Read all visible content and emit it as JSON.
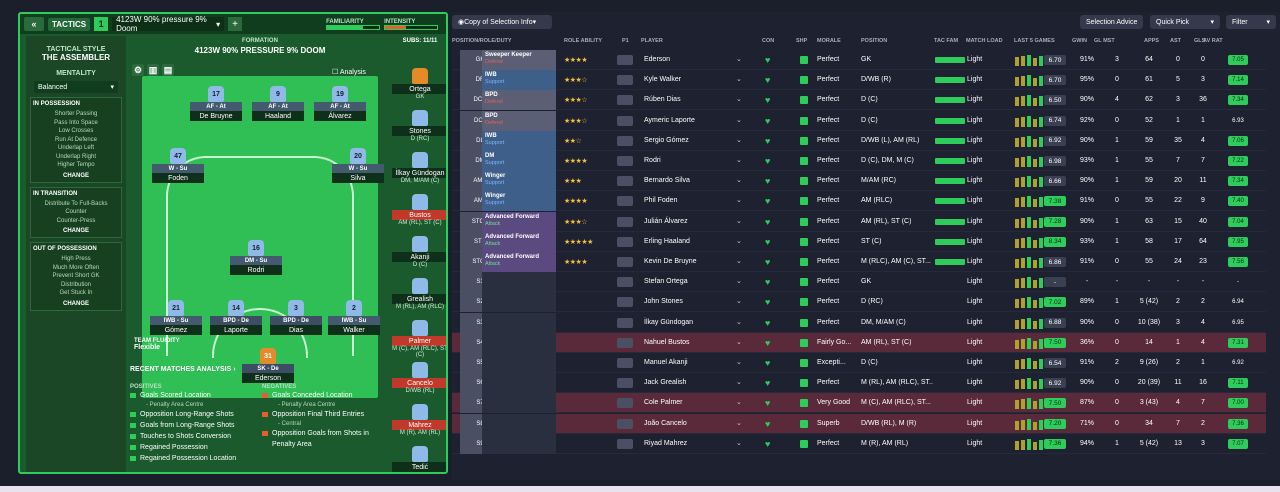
{
  "tactics_bar": {
    "tactics_label": "TACTICS",
    "tactic_num": "1",
    "tactic_name": "4123W 90% pressure 9% Doom",
    "familiarity": "FAMILIARITY",
    "intensity": "INTENSITY"
  },
  "sidebar": {
    "style_label": "TACTICAL STYLE",
    "style_name": "THE ASSEMBLER",
    "mentality_label": "MENTALITY",
    "mentality": "Balanced",
    "in_possession": {
      "title": "IN POSSESSION",
      "items": [
        "Shorter Passing",
        "Pass Into Space",
        "Low Crosses",
        "Run At Defence",
        "Underlap Left",
        "Underlap Right",
        "Higher Tempo"
      ],
      "change": "CHANGE"
    },
    "in_transition": {
      "title": "IN TRANSITION",
      "items": [
        "Distribute To Full-Backs",
        "Counter",
        "Counter-Press"
      ],
      "change": "CHANGE"
    },
    "out_of_possession": {
      "title": "OUT OF POSSESSION",
      "items": [
        "High Press",
        "Much More Often",
        "Prevent Short GK",
        "Distribution",
        "Get Stuck In"
      ],
      "change": "CHANGE"
    }
  },
  "pitch": {
    "formation_label": "FORMATION",
    "formation_name": "4123W 90% PRESSURE 9% DOOM",
    "analysis": "Analysis",
    "subs_label": "SUBS:",
    "subs_count": "11/11",
    "players": [
      {
        "num": "17",
        "role": "AF - At",
        "name": "De Bruyne"
      },
      {
        "num": "9",
        "role": "AF - At",
        "name": "Haaland"
      },
      {
        "num": "19",
        "role": "AF - At",
        "name": "Álvarez"
      },
      {
        "num": "47",
        "role": "W - Su",
        "name": "Foden"
      },
      {
        "num": "20",
        "role": "W - Su",
        "name": "Silva"
      },
      {
        "num": "16",
        "role": "DM - Su",
        "name": "Rodri"
      },
      {
        "num": "21",
        "role": "IWB - Su",
        "name": "Gómez"
      },
      {
        "num": "14",
        "role": "BPD - De",
        "name": "Laporte"
      },
      {
        "num": "3",
        "role": "BPD - De",
        "name": "Dias"
      },
      {
        "num": "2",
        "role": "IWB - Su",
        "name": "Walker"
      },
      {
        "num": "31",
        "role": "SK - De",
        "name": "Ederson"
      }
    ],
    "fluidity_label": "TEAM FLUIDITY",
    "fluidity": "Flexible"
  },
  "subs": [
    {
      "name": "Ortega",
      "pos": "GK"
    },
    {
      "name": "Stones",
      "pos": "D (RC)"
    },
    {
      "name": "İlkay Gündogan",
      "pos": "DM, M/AM (C)"
    },
    {
      "name": "Bustos",
      "pos": "AM (RL), ST (C)"
    },
    {
      "name": "Akanji",
      "pos": "D (C)"
    },
    {
      "name": "Grealish",
      "pos": "M (RL), AM (RLC)"
    },
    {
      "name": "Palmer",
      "pos": "M (C), AM (RLC), ST (C)"
    },
    {
      "name": "Cancelo",
      "pos": "D/WB (RL)"
    },
    {
      "name": "Mahrez",
      "pos": "M (R), AM (RL)"
    },
    {
      "name": "Tedić",
      "pos": ""
    }
  ],
  "recent": {
    "title": "RECENT MATCHES ANALYSIS",
    "positives_label": "POSITIVES",
    "negatives_label": "NEGATIVES",
    "positives": [
      "Goals Scored Location",
      "Opposition Long-Range Shots",
      "Goals from Long-Range Shots",
      "Touches to Shots Conversion",
      "Regained Possession",
      "Regained Possession Location"
    ],
    "pos_sub": "- Penalty Area Centre",
    "negatives": [
      "Goals Conceded Location",
      "Opposition Final Third Entries",
      "Opposition Goals from Shots in Penalty Area"
    ],
    "neg_sub1": "- Penalty Area Centre",
    "neg_sub2": "- Central"
  },
  "rp_bar": {
    "copy": "Copy of Selection Info",
    "advice": "Selection Advice",
    "quick": "Quick Pick",
    "filter": "Filter"
  },
  "headers": [
    "POSITION/ROLE/DUTY",
    "ROLE ABILITY",
    "P1",
    "PLAYER",
    "CON",
    "SHP",
    "MORALE",
    "POSITION",
    "TAC FAM",
    "MATCH LOAD",
    "LAST 5 GAMES",
    "GWIN",
    "GL MST",
    "APPS",
    "AST",
    "GLS",
    "AV RAT"
  ],
  "rows": [
    {
      "pos": "GK",
      "role": "Sweeper Keeper",
      "duty": "Defend",
      "dt": "def",
      "stars": "★★★★",
      "name": "Ederson",
      "morale": "Perfect",
      "position": "GK",
      "ml": "Light",
      "rt": "6.70",
      "g": "91%",
      "m": "3",
      "a": "64",
      "s": "0",
      "l": "0",
      "av": "7.05"
    },
    {
      "pos": "DR",
      "role": "IWB",
      "duty": "Support",
      "dt": "sup",
      "stars": "★★★☆",
      "name": "Kyle Walker",
      "morale": "Perfect",
      "position": "D/WB (R)",
      "ml": "Light",
      "rt": "6.70",
      "g": "95%",
      "m": "0",
      "a": "61",
      "s": "5",
      "l": "3",
      "av": "7.14"
    },
    {
      "pos": "DCR",
      "role": "BPD",
      "duty": "Defend",
      "dt": "def",
      "stars": "★★★☆",
      "name": "Rúben Dias",
      "morale": "Perfect",
      "position": "D (C)",
      "ml": "Light",
      "rt": "6.50",
      "g": "90%",
      "m": "4",
      "a": "62",
      "s": "3",
      "l": "36",
      "av": "7.34"
    },
    {
      "pos": "DCL",
      "role": "BPD",
      "duty": "Defend",
      "dt": "def",
      "stars": "★★★☆",
      "name": "Aymeric Laporte",
      "morale": "Perfect",
      "position": "D (C)",
      "ml": "Light",
      "rt": "6.74",
      "g": "92%",
      "m": "0",
      "a": "52",
      "s": "1",
      "l": "1",
      "av": "6.93"
    },
    {
      "pos": "DL",
      "role": "IWB",
      "duty": "Support",
      "dt": "sup",
      "stars": "★★☆",
      "name": "Sergio Gómez",
      "morale": "Perfect",
      "position": "D/WB (L), AM (RL)",
      "ml": "Light",
      "rt": "6.92",
      "g": "90%",
      "m": "1",
      "a": "59",
      "s": "35",
      "l": "4",
      "av": "7.06"
    },
    {
      "pos": "DM",
      "role": "DM",
      "duty": "Support",
      "dt": "sup",
      "stars": "★★★★",
      "name": "Rodri",
      "morale": "Perfect",
      "position": "D (C), DM, M (C)",
      "ml": "Light",
      "rt": "6.98",
      "g": "93%",
      "m": "1",
      "a": "55",
      "s": "7",
      "l": "7",
      "av": "7.22"
    },
    {
      "pos": "AMR",
      "role": "Winger",
      "duty": "Support",
      "dt": "sup",
      "stars": "★★★",
      "name": "Bernardo Silva",
      "morale": "Perfect",
      "position": "M/AM (RC)",
      "ml": "Light",
      "rt": "6.66",
      "g": "90%",
      "m": "1",
      "a": "59",
      "s": "20",
      "l": "11",
      "av": "7.34"
    },
    {
      "pos": "AML",
      "role": "Winger",
      "duty": "Support",
      "dt": "sup",
      "stars": "★★★★",
      "name": "Phil Foden",
      "morale": "Perfect",
      "position": "AM (RLC)",
      "ml": "Light",
      "rt": "7.38",
      "g": "91%",
      "m": "0",
      "a": "55",
      "s": "22",
      "l": "9",
      "av": "7.40"
    },
    {
      "pos": "STCR",
      "role": "Advanced Forward",
      "duty": "Attack",
      "dt": "att",
      "stars": "★★★☆",
      "name": "Julián Álvarez",
      "morale": "Perfect",
      "position": "AM (RL), ST (C)",
      "ml": "Light",
      "rt": "7.28",
      "g": "90%",
      "m": "1",
      "a": "63",
      "s": "15",
      "l": "40",
      "av": "7.04"
    },
    {
      "pos": "STC",
      "role": "Advanced Forward",
      "duty": "Attack",
      "dt": "att",
      "stars": "★★★★★",
      "name": "Erling Haaland",
      "morale": "Perfect",
      "position": "ST (C)",
      "ml": "Light",
      "rt": "8.34",
      "g": "93%",
      "m": "1",
      "a": "58",
      "s": "17",
      "l": "64",
      "av": "7.95"
    },
    {
      "pos": "STCL",
      "role": "Advanced Forward",
      "duty": "Attack",
      "dt": "att",
      "stars": "★★★★",
      "name": "Kevin De Bruyne",
      "morale": "Perfect",
      "position": "M (RLC), AM (C), ST...",
      "ml": "Light",
      "rt": "6.86",
      "g": "91%",
      "m": "0",
      "a": "55",
      "s": "24",
      "l": "23",
      "av": "7.56"
    },
    {
      "pos": "S1",
      "role": "",
      "duty": "",
      "dt": "",
      "stars": "",
      "name": "Stefan Ortega",
      "morale": "Perfect",
      "position": "GK",
      "ml": "Light",
      "rt": "-",
      "g": "-",
      "m": "-",
      "a": "-",
      "s": "-",
      "l": "-",
      "av": "-"
    },
    {
      "pos": "S2",
      "role": "",
      "duty": "",
      "dt": "",
      "stars": "",
      "name": "John Stones",
      "morale": "Perfect",
      "position": "D (RC)",
      "ml": "Light",
      "rt": "7.02",
      "g": "89%",
      "m": "1",
      "a": "5 (42)",
      "s": "2",
      "l": "2",
      "av": "6.94"
    },
    {
      "pos": "S3",
      "role": "",
      "duty": "",
      "dt": "",
      "stars": "",
      "name": "İlkay Gündogan",
      "morale": "Perfect",
      "position": "DM, M/AM (C)",
      "ml": "Light",
      "rt": "6.88",
      "g": "90%",
      "m": "0",
      "a": "10 (38)",
      "s": "3",
      "l": "4",
      "av": "6.95"
    },
    {
      "pos": "S4",
      "role": "",
      "duty": "",
      "dt": "",
      "stars": "",
      "name": "Nahuel Bustos",
      "morale": "Fairly Go...",
      "position": "AM (RL), ST (C)",
      "ml": "Light",
      "rt": "7.50",
      "g": "36%",
      "m": "0",
      "a": "14",
      "s": "1",
      "l": "4",
      "av": "7.31",
      "pink": true
    },
    {
      "pos": "S5",
      "role": "",
      "duty": "",
      "dt": "",
      "stars": "",
      "name": "Manuel Akanji",
      "morale": "Excepti...",
      "position": "D (C)",
      "ml": "Light",
      "rt": "6.54",
      "g": "91%",
      "m": "2",
      "a": "9 (26)",
      "s": "2",
      "l": "1",
      "av": "6.92"
    },
    {
      "pos": "S6",
      "role": "",
      "duty": "",
      "dt": "",
      "stars": "",
      "name": "Jack Grealish",
      "morale": "Perfect",
      "position": "M (RL), AM (RLC), ST...",
      "ml": "Light",
      "rt": "6.92",
      "g": "90%",
      "m": "0",
      "a": "20 (39)",
      "s": "11",
      "l": "16",
      "av": "7.11"
    },
    {
      "pos": "S7",
      "role": "",
      "duty": "",
      "dt": "",
      "stars": "",
      "name": "Cole Palmer",
      "morale": "Very Good",
      "position": "M (C), AM (RLC), ST...",
      "ml": "Light",
      "rt": "7.50",
      "g": "87%",
      "m": "0",
      "a": "3 (43)",
      "s": "4",
      "l": "7",
      "av": "7.00",
      "pink": true
    },
    {
      "pos": "S8",
      "role": "",
      "duty": "",
      "dt": "",
      "stars": "",
      "name": "João Cancelo",
      "morale": "Superb",
      "position": "D/WB (RL), M (R)",
      "ml": "Light",
      "rt": "7.20",
      "g": "71%",
      "m": "0",
      "a": "34",
      "s": "7",
      "l": "2",
      "av": "7.36",
      "pink": true
    },
    {
      "pos": "S9",
      "role": "",
      "duty": "",
      "dt": "",
      "stars": "",
      "name": "Riyad Mahrez",
      "morale": "Perfect",
      "position": "M (R), AM (RL)",
      "ml": "Light",
      "rt": "7.36",
      "g": "94%",
      "m": "1",
      "a": "5 (42)",
      "s": "13",
      "l": "3",
      "av": "7.07"
    }
  ]
}
